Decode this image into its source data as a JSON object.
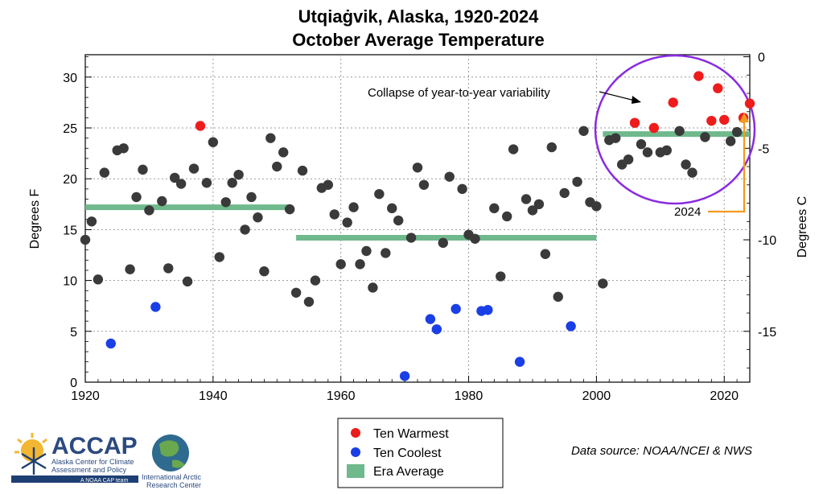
{
  "chart_data": {
    "type": "scatter",
    "title_line1": "Utqiaġvik, Alaska, 1920-2024",
    "title_line2": "October Average Temperature",
    "ylabel_left": "Degrees F",
    "ylabel_right": "Degrees C",
    "xlim": [
      1920,
      2024
    ],
    "ylim": [
      0,
      32.2
    ],
    "x_ticks": [
      1920,
      1940,
      1960,
      1980,
      2000,
      2020
    ],
    "y_ticks_left": [
      0,
      5,
      10,
      15,
      20,
      25,
      30
    ],
    "y_ticks_right": [
      0,
      -5,
      -10,
      -15
    ],
    "grid": "dotted",
    "series": [
      {
        "name": "Ten Warmest",
        "color": "#ee1c1c",
        "points": [
          {
            "x": 1938,
            "y": 25.2
          },
          {
            "x": 2006,
            "y": 25.5
          },
          {
            "x": 2009,
            "y": 25.0
          },
          {
            "x": 2012,
            "y": 27.5
          },
          {
            "x": 2016,
            "y": 30.1
          },
          {
            "x": 2018,
            "y": 25.7
          },
          {
            "x": 2019,
            "y": 28.9
          },
          {
            "x": 2020,
            "y": 25.8
          },
          {
            "x": 2023,
            "y": 26.0
          },
          {
            "x": 2024,
            "y": 27.4
          }
        ]
      },
      {
        "name": "Ten Coolest",
        "color": "#1a3fe6",
        "points": [
          {
            "x": 1924,
            "y": 3.8
          },
          {
            "x": 1931,
            "y": 7.4
          },
          {
            "x": 1970,
            "y": 0.6
          },
          {
            "x": 1974,
            "y": 6.2
          },
          {
            "x": 1975,
            "y": 5.2
          },
          {
            "x": 1978,
            "y": 7.2
          },
          {
            "x": 1982,
            "y": 7.0
          },
          {
            "x": 1983,
            "y": 7.1
          },
          {
            "x": 1988,
            "y": 2.0
          },
          {
            "x": 1996,
            "y": 5.5
          }
        ]
      },
      {
        "name": "Other Years",
        "color": "#3a3a3a",
        "points": [
          {
            "x": 1920,
            "y": 14.0
          },
          {
            "x": 1921,
            "y": 15.8
          },
          {
            "x": 1922,
            "y": 10.1
          },
          {
            "x": 1923,
            "y": 20.6
          },
          {
            "x": 1925,
            "y": 22.8
          },
          {
            "x": 1926,
            "y": 23.0
          },
          {
            "x": 1927,
            "y": 11.1
          },
          {
            "x": 1928,
            "y": 18.2
          },
          {
            "x": 1929,
            "y": 20.9
          },
          {
            "x": 1930,
            "y": 16.9
          },
          {
            "x": 1932,
            "y": 17.8
          },
          {
            "x": 1933,
            "y": 11.2
          },
          {
            "x": 1934,
            "y": 20.1
          },
          {
            "x": 1935,
            "y": 19.5
          },
          {
            "x": 1936,
            "y": 9.9
          },
          {
            "x": 1937,
            "y": 21.0
          },
          {
            "x": 1939,
            "y": 19.6
          },
          {
            "x": 1940,
            "y": 23.6
          },
          {
            "x": 1941,
            "y": 12.3
          },
          {
            "x": 1942,
            "y": 17.7
          },
          {
            "x": 1943,
            "y": 19.6
          },
          {
            "x": 1944,
            "y": 20.4
          },
          {
            "x": 1945,
            "y": 15.0
          },
          {
            "x": 1946,
            "y": 18.2
          },
          {
            "x": 1947,
            "y": 16.2
          },
          {
            "x": 1948,
            "y": 10.9
          },
          {
            "x": 1949,
            "y": 24.0
          },
          {
            "x": 1950,
            "y": 21.2
          },
          {
            "x": 1951,
            "y": 22.6
          },
          {
            "x": 1952,
            "y": 17.0
          },
          {
            "x": 1953,
            "y": 8.8
          },
          {
            "x": 1954,
            "y": 20.8
          },
          {
            "x": 1955,
            "y": 7.9
          },
          {
            "x": 1956,
            "y": 10.0
          },
          {
            "x": 1957,
            "y": 19.1
          },
          {
            "x": 1958,
            "y": 19.4
          },
          {
            "x": 1959,
            "y": 16.5
          },
          {
            "x": 1960,
            "y": 11.6
          },
          {
            "x": 1961,
            "y": 15.7
          },
          {
            "x": 1962,
            "y": 17.2
          },
          {
            "x": 1963,
            "y": 11.6
          },
          {
            "x": 1964,
            "y": 12.9
          },
          {
            "x": 1965,
            "y": 9.3
          },
          {
            "x": 1966,
            "y": 18.5
          },
          {
            "x": 1967,
            "y": 12.7
          },
          {
            "x": 1968,
            "y": 17.1
          },
          {
            "x": 1969,
            "y": 15.9
          },
          {
            "x": 1971,
            "y": 14.2
          },
          {
            "x": 1972,
            "y": 21.1
          },
          {
            "x": 1973,
            "y": 19.4
          },
          {
            "x": 1976,
            "y": 13.7
          },
          {
            "x": 1977,
            "y": 20.2
          },
          {
            "x": 1979,
            "y": 19.0
          },
          {
            "x": 1980,
            "y": 14.5
          },
          {
            "x": 1981,
            "y": 14.1
          },
          {
            "x": 1984,
            "y": 17.1
          },
          {
            "x": 1985,
            "y": 10.4
          },
          {
            "x": 1986,
            "y": 16.3
          },
          {
            "x": 1987,
            "y": 22.9
          },
          {
            "x": 1989,
            "y": 18.0
          },
          {
            "x": 1990,
            "y": 16.9
          },
          {
            "x": 1991,
            "y": 17.5
          },
          {
            "x": 1992,
            "y": 12.6
          },
          {
            "x": 1993,
            "y": 23.1
          },
          {
            "x": 1994,
            "y": 8.4
          },
          {
            "x": 1995,
            "y": 18.6
          },
          {
            "x": 1997,
            "y": 19.7
          },
          {
            "x": 1998,
            "y": 24.7
          },
          {
            "x": 1999,
            "y": 17.7
          },
          {
            "x": 2000,
            "y": 17.3
          },
          {
            "x": 2001,
            "y": 9.7
          },
          {
            "x": 2002,
            "y": 23.8
          },
          {
            "x": 2003,
            "y": 24.0
          },
          {
            "x": 2004,
            "y": 21.4
          },
          {
            "x": 2005,
            "y": 21.9
          },
          {
            "x": 2007,
            "y": 23.4
          },
          {
            "x": 2008,
            "y": 22.6
          },
          {
            "x": 2010,
            "y": 22.6
          },
          {
            "x": 2011,
            "y": 22.8
          },
          {
            "x": 2013,
            "y": 24.7
          },
          {
            "x": 2014,
            "y": 21.4
          },
          {
            "x": 2015,
            "y": 20.6
          },
          {
            "x": 2017,
            "y": 24.1
          },
          {
            "x": 2021,
            "y": 23.7
          },
          {
            "x": 2022,
            "y": 24.6
          }
        ]
      }
    ],
    "era_averages": {
      "name": "Era Average",
      "color": "#6fb98c",
      "segments": [
        {
          "x_start": 1920,
          "x_end": 1952,
          "y": 17.2
        },
        {
          "x_start": 1953,
          "x_end": 2000,
          "y": 14.2
        },
        {
          "x_start": 2001,
          "x_end": 2024,
          "y": 24.4
        }
      ]
    },
    "annotations": {
      "variability_text": "Collapse of year-to-year variability",
      "year_label": "2024",
      "year_label_color": "#f39a1f",
      "circle_color": "#8a2be2"
    },
    "legend": {
      "placement": "bottom-center",
      "items": [
        {
          "label": "Ten Warmest",
          "color": "#ee1c1c",
          "shape": "circle"
        },
        {
          "label": "Ten Coolest",
          "color": "#1a3fe6",
          "shape": "circle"
        },
        {
          "label": "Era Average",
          "color": "#6fb98c",
          "shape": "square"
        }
      ]
    },
    "data_source": "Data source: NOAA/NCEI & NWS"
  },
  "logos": {
    "accap_name": "ACCAP",
    "accap_line1": "Alaska Center for Climate",
    "accap_line2": "Assessment and Policy",
    "accap_tag": "A NOAA CAP team",
    "iarc_line1": "International Arctic",
    "iarc_line2": "Research Center"
  }
}
